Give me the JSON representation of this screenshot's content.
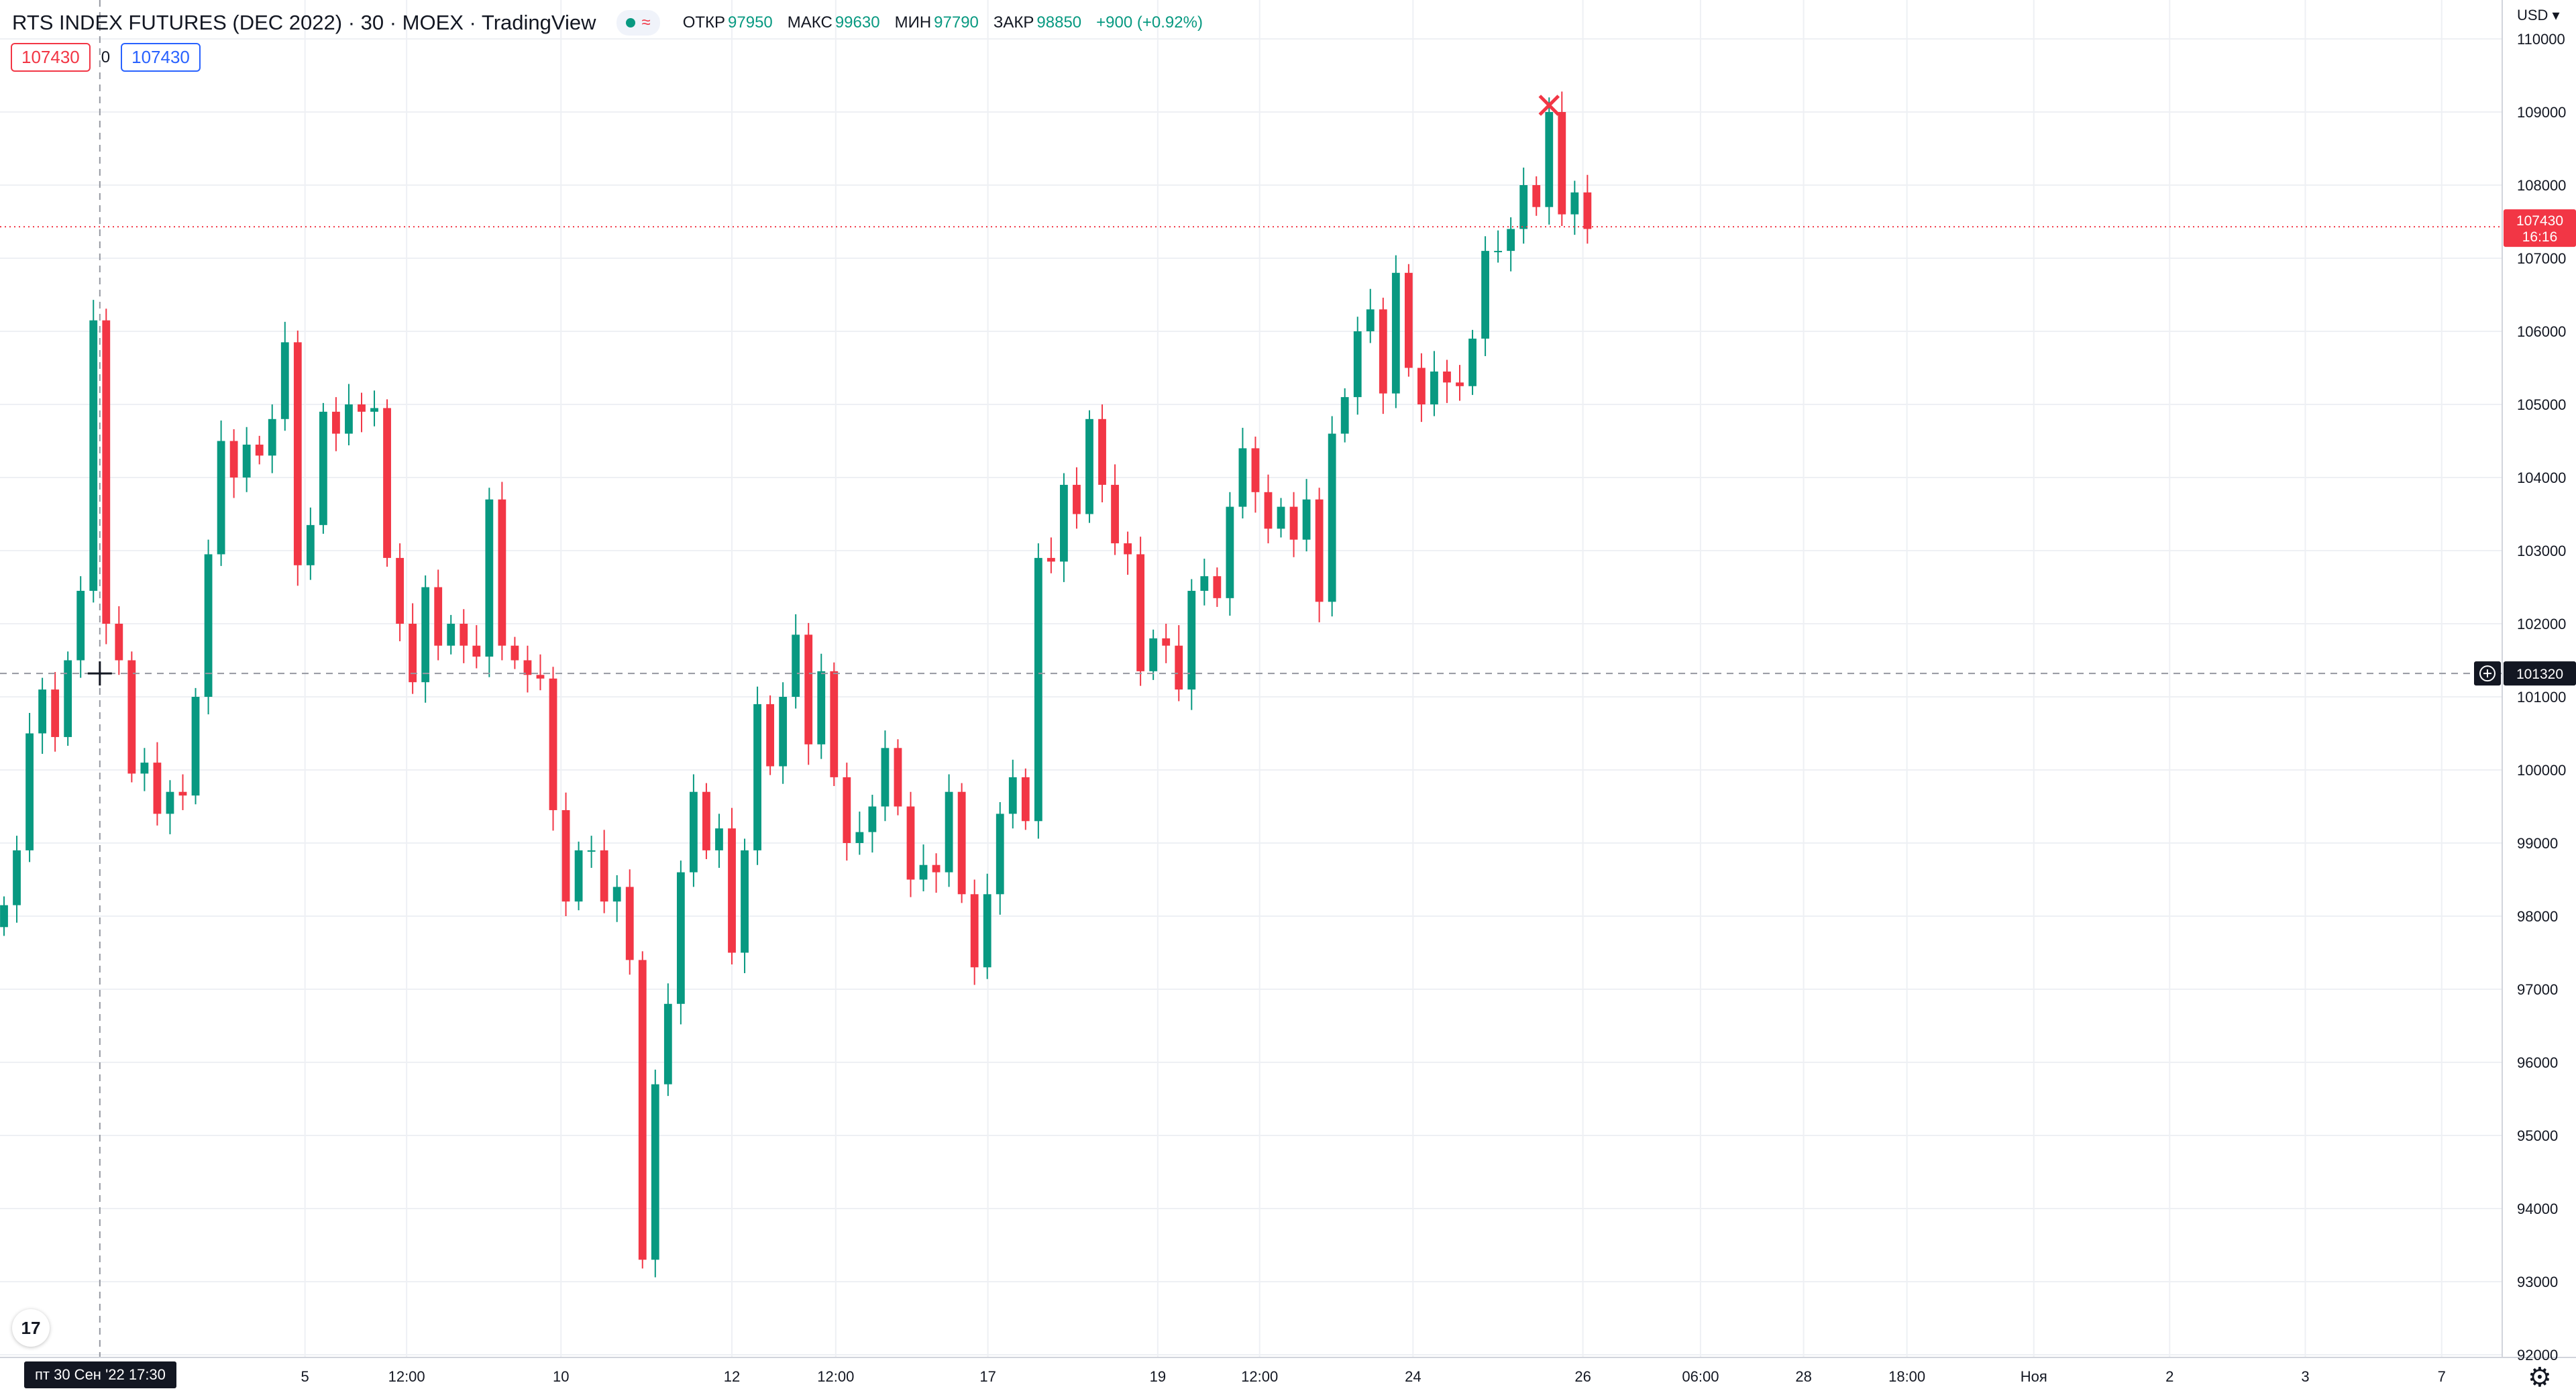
{
  "header": {
    "title": "RTS INDEX FUTURES (DEC 2022) · 30 · MOEX · TradingView",
    "wave_glyph": "≈",
    "ohlc": [
      {
        "label": "ОТКР",
        "value": "97950"
      },
      {
        "label": "МАКС",
        "value": "99630"
      },
      {
        "label": "МИН",
        "value": "97790"
      },
      {
        "label": "ЗАКР",
        "value": "98850"
      }
    ],
    "change": "+900 (+0.92%)",
    "bid": "107430",
    "spread": "0",
    "ask": "107430"
  },
  "currency": "USD ▾",
  "logo_text": "17",
  "crosshair_time": "пт 30 Сен '22    17:30",
  "colors": {
    "up": "#089981",
    "down": "#f23645",
    "grid": "#eef0f4",
    "axis_text": "#131722"
  },
  "chart_data": {
    "type": "candlestick",
    "symbol": "RTS INDEX FUTURES (DEC 2022)",
    "interval": "30",
    "exchange": "MOEX",
    "ylim": [
      92000,
      110000
    ],
    "y_ticks": [
      92000,
      93000,
      94000,
      95000,
      96000,
      97000,
      98000,
      99000,
      100000,
      101000,
      102000,
      103000,
      104000,
      105000,
      106000,
      107000,
      108000,
      109000,
      110000
    ],
    "x_ticks": [
      {
        "label": "5",
        "pos": 0.1219
      },
      {
        "label": "12:00",
        "pos": 0.1625
      },
      {
        "label": "10",
        "pos": 0.2242
      },
      {
        "label": "12",
        "pos": 0.2925
      },
      {
        "label": "12:00",
        "pos": 0.334
      },
      {
        "label": "17",
        "pos": 0.3948
      },
      {
        "label": "19",
        "pos": 0.4627
      },
      {
        "label": "12:00",
        "pos": 0.5034
      },
      {
        "label": "24",
        "pos": 0.5647
      },
      {
        "label": "26",
        "pos": 0.6326
      },
      {
        "label": "06:00",
        "pos": 0.6796
      },
      {
        "label": "28",
        "pos": 0.7208
      },
      {
        "label": "18:00",
        "pos": 0.7621
      },
      {
        "label": "Ноя",
        "pos": 0.8128
      },
      {
        "label": "2",
        "pos": 0.8671
      },
      {
        "label": "3",
        "pos": 0.9213
      },
      {
        "label": "7",
        "pos": 0.9758
      }
    ],
    "data_end_pos": 0.6505,
    "series_close": [
      98150,
      98900,
      100500,
      101100,
      100450,
      101500,
      102450,
      106150,
      102000,
      101500,
      99950,
      100100,
      99400,
      99700,
      99650,
      101000,
      102950,
      104500,
      104000,
      104450,
      104300,
      104800,
      105850,
      102800,
      103350,
      104900,
      104600,
      105000,
      104900,
      104950,
      102900,
      102000,
      101200,
      102500,
      101700,
      102000,
      101700,
      101550,
      103700,
      101700,
      101500,
      101300,
      101250,
      99450,
      98200,
      98900,
      98900,
      98200,
      98400,
      97400,
      93300,
      95700,
      96800,
      98600,
      99700,
      98900,
      99200,
      97500,
      98900,
      100900,
      100050,
      101000,
      101850,
      100350,
      101350,
      99900,
      99000,
      99150,
      99500,
      100300,
      99500,
      98500,
      98700,
      98600,
      99700,
      98300,
      97300,
      98300,
      99400,
      99900,
      99300,
      102900,
      102850,
      103900,
      103500,
      104800,
      103900,
      103100,
      102950,
      101350,
      101800,
      101700,
      101100,
      102450,
      102650,
      102350,
      103600,
      104400,
      103800,
      103300,
      103600,
      103150,
      103700,
      102300,
      104600,
      105100,
      106000,
      106300,
      105150,
      106800,
      105500,
      105000,
      105450,
      105300,
      105250,
      105900,
      107100,
      107100,
      107400,
      108000,
      107700,
      109000,
      107600,
      107900,
      107400
    ]
  },
  "price_axis": {
    "last_price": "107430",
    "countdown": "16:16",
    "crosshair_price": "101320",
    "crosshair_value": 101320
  }
}
